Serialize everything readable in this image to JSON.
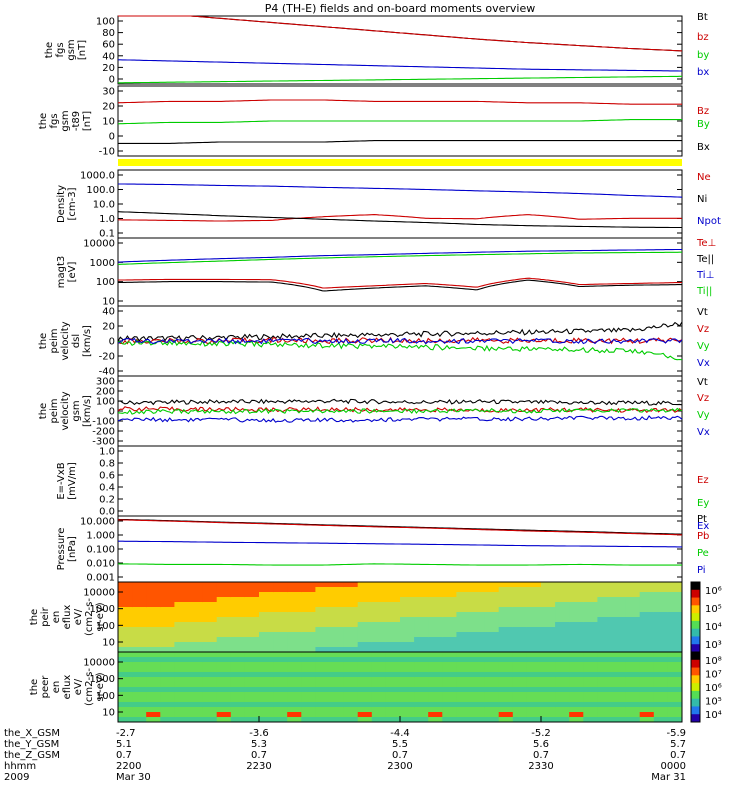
{
  "chart_data": {
    "type": "line",
    "title": "P4 (TH-E) fields and on-board moments overview",
    "x": {
      "hhmm": [
        "2200",
        "2230",
        "2300",
        "2330",
        "0000"
      ],
      "the_X_GSM": [
        "-2.7",
        "-3.6",
        "-4.4",
        "-5.2",
        "-5.9"
      ],
      "the_Y_GSM": [
        "5.1",
        "5.3",
        "5.5",
        "5.6",
        "5.7"
      ],
      "the_Z_GSM": [
        "0.7",
        "0.7",
        "0.7",
        "0.7",
        "0.7"
      ],
      "dates": [
        "Mar 30",
        "Mar 31"
      ],
      "row_labels": [
        "the_X_GSM",
        "the_Y_GSM",
        "the_Z_GSM",
        "hhmm",
        "2009"
      ]
    },
    "panels": [
      {
        "id": "fgs_gsm",
        "ylabel": [
          "the",
          "fgs",
          "gsm",
          "[nT]"
        ],
        "yticks": [
          "100",
          "80",
          "60",
          "40",
          "20",
          "0"
        ],
        "ylim": [
          -10,
          105
        ],
        "series": [
          {
            "name": "Bt",
            "color": "#000000",
            "values": [
              115,
              108,
              101,
              94,
              87,
              80,
              73,
              66,
              60,
              55,
              50,
              46
            ]
          },
          {
            "name": "bz",
            "color": "#cc0000",
            "values": [
              115,
              108,
              101,
              94,
              87,
              80,
              73,
              66,
              60,
              55,
              50,
              46
            ]
          },
          {
            "name": "by",
            "color": "#00cc00",
            "values": [
              -8,
              -7,
              -6,
              -5,
              -4,
              -3,
              -2,
              -1,
              0,
              1,
              2,
              3
            ]
          },
          {
            "name": "bx",
            "color": "#0000cc",
            "values": [
              31,
              29,
              27,
              25,
              23,
              21,
              19,
              17,
              15,
              14,
              13,
              12
            ]
          }
        ]
      },
      {
        "id": "fgs_gsm_t89",
        "ylabel": [
          "the",
          "fgs",
          "gsm",
          "-t89",
          "[nT]"
        ],
        "yticks": [
          "30",
          "20",
          "10",
          "0",
          "-10"
        ],
        "ylim": [
          -17,
          33
        ],
        "series": [
          {
            "name": "Bz",
            "color": "#cc0000",
            "values": [
              21,
              22,
              22,
              23,
              23,
              22,
              22,
              22,
              21,
              21,
              20,
              20
            ]
          },
          {
            "name": "By",
            "color": "#00cc00",
            "values": [
              6,
              7,
              7,
              8,
              8,
              8,
              8,
              8,
              8,
              8,
              9,
              9
            ]
          },
          {
            "name": "Bx",
            "color": "#000000",
            "values": [
              -8,
              -8,
              -7,
              -7,
              -7,
              -6,
              -6,
              -6,
              -6,
              -6,
              -6,
              -6
            ]
          }
        ]
      },
      {
        "id": "density",
        "ylabel": [
          "Density",
          "[cm-3]"
        ],
        "yticks": [
          "1000.0",
          "100.0",
          "10.0",
          "1.0",
          "0.1"
        ],
        "ylim": [
          0.08,
          2000
        ],
        "log": true,
        "series": [
          {
            "name": "Ne",
            "color": "#cc0000",
            "values": [
              1.2,
              1.1,
              1.0,
              1.1,
              1.9,
              2.6,
              1.5,
              1.4,
              2.6,
              1.3,
              1.5,
              1.5
            ]
          },
          {
            "name": "Ni",
            "color": "#000000",
            "values": [
              4,
              3,
              2.2,
              1.7,
              1.3,
              1.0,
              0.8,
              0.6,
              0.5,
              0.45,
              0.4,
              0.38
            ]
          },
          {
            "name": "Npot",
            "color": "#0000cc",
            "values": [
              250,
              230,
              200,
              180,
              150,
              130,
              110,
              90,
              75,
              60,
              45,
              35
            ]
          }
        ]
      },
      {
        "id": "temperature",
        "ylabel": [
          "magt3",
          "[eV]"
        ],
        "yticks": [
          "10000",
          "1000",
          "100",
          "10"
        ],
        "ylim": [
          8,
          12000
        ],
        "log": true,
        "series": [
          {
            "name": "Te⊥",
            "color": "#cc0000",
            "values": [
              130,
              140,
              140,
              135,
              55,
              70,
              90,
              60,
              160,
              80,
              90,
              100
            ]
          },
          {
            "name": "Te||",
            "color": "#000000",
            "values": [
              100,
              110,
              110,
              105,
              40,
              55,
              70,
              45,
              130,
              65,
              75,
              80
            ]
          },
          {
            "name": "Ti⊥",
            "color": "#0000cc",
            "values": [
              900,
              1100,
              1300,
              1500,
              1800,
              2000,
              2300,
              2600,
              2900,
              3100,
              3300,
              3500
            ]
          },
          {
            "name": "Ti||",
            "color": "#00cc00",
            "values": [
              700,
              850,
              1000,
              1200,
              1400,
              1600,
              1800,
              2000,
              2200,
              2400,
              2500,
              2600
            ]
          }
        ]
      },
      {
        "id": "peim_velocity_dsl",
        "ylabel": [
          "the",
          "peim",
          "velocity",
          "dsl",
          "[km/s]"
        ],
        "yticks": [
          "40",
          "20",
          "0",
          "-20",
          "-40"
        ],
        "ylim": [
          -40,
          40
        ],
        "series": [
          {
            "name": "Vt",
            "color": "#000000",
            "values": [
              3,
              3,
              4,
              5,
              6,
              7,
              8,
              9,
              10,
              11,
              12,
              20
            ]
          },
          {
            "name": "Vz",
            "color": "#cc0000",
            "values": [
              0,
              0,
              0,
              1,
              0,
              1,
              0,
              1,
              0,
              1,
              0,
              1
            ]
          },
          {
            "name": "Vy",
            "color": "#00cc00",
            "values": [
              -2,
              -2,
              -3,
              -4,
              -5,
              -6,
              -7,
              -8,
              -9,
              -10,
              -11,
              -20
            ]
          },
          {
            "name": "Vx",
            "color": "#0000cc",
            "values": [
              0,
              0,
              0,
              0,
              0,
              0,
              0,
              0,
              0,
              0,
              0,
              0
            ]
          }
        ]
      },
      {
        "id": "peim_velocity_gsm",
        "ylabel": [
          "the",
          "peim",
          "velocity",
          "gsm",
          "[km/s]"
        ],
        "yticks": [
          "300",
          "200",
          "100",
          "0",
          "-100",
          "-200",
          "-300"
        ],
        "ylim": [
          -300,
          300
        ],
        "series": [
          {
            "name": "Vt",
            "color": "#000000",
            "values": [
              70,
              75,
              80,
              80,
              85,
              80,
              75,
              80,
              75,
              70,
              70,
              65
            ]
          },
          {
            "name": "Vz",
            "color": "#cc0000",
            "values": [
              20,
              15,
              15,
              10,
              15,
              10,
              10,
              5,
              10,
              10,
              5,
              5
            ]
          },
          {
            "name": "Vy",
            "color": "#00cc00",
            "values": [
              -10,
              -5,
              -5,
              0,
              -5,
              0,
              0,
              5,
              0,
              5,
              5,
              5
            ]
          },
          {
            "name": "Vx",
            "color": "#0000cc",
            "values": [
              -70,
              -75,
              -75,
              -80,
              -80,
              -75,
              -70,
              -70,
              -65,
              -60,
              -60,
              -55
            ]
          }
        ]
      },
      {
        "id": "exb",
        "ylabel": [
          "E=-VxB",
          "[mV/m]"
        ],
        "yticks": [
          "1.0",
          "0.8",
          "0.6",
          "0.4",
          "0.2",
          "0.0"
        ],
        "ylim": [
          0,
          1
        ],
        "series": [
          {
            "name": "Ez",
            "color": "#cc0000",
            "values": []
          },
          {
            "name": "Ey",
            "color": "#00cc00",
            "values": []
          },
          {
            "name": "Ex",
            "color": "#0000cc",
            "values": []
          }
        ]
      },
      {
        "id": "pressure",
        "ylabel": [
          "Pressure",
          "[nPa]"
        ],
        "yticks": [
          "10.000",
          "1.000",
          "0.100",
          "0.010",
          "0.001"
        ],
        "ylim": [
          0.0008,
          15
        ],
        "log": true,
        "series": [
          {
            "name": "Pt",
            "color": "#000000",
            "values": [
              9.0,
              7.5,
              6.0,
              5.0,
              4.0,
              3.3,
              2.7,
              2.2,
              1.8,
              1.5,
              1.2,
              1.0
            ]
          },
          {
            "name": "Pb",
            "color": "#cc0000",
            "values": [
              8.5,
              7.0,
              5.6,
              4.6,
              3.7,
              3.0,
              2.5,
              2.0,
              1.6,
              1.35,
              1.1,
              0.9
            ]
          },
          {
            "name": "Pe",
            "color": "#00cc00",
            "values": [
              0.012,
              0.011,
              0.011,
              0.01,
              0.01,
              0.012,
              0.011,
              0.01,
              0.01,
              0.011,
              0.01,
              0.01
            ]
          },
          {
            "name": "Pi",
            "color": "#0000cc",
            "values": [
              0.35,
              0.33,
              0.3,
              0.28,
              0.26,
              0.24,
              0.22,
              0.2,
              0.18,
              0.17,
              0.16,
              0.15
            ]
          }
        ]
      }
    ],
    "spectrograms": [
      {
        "id": "peir_en_eflux",
        "ylabel": [
          "the",
          "peir",
          "en",
          "eflux",
          "eV/",
          "(cm2-s-",
          "sr-eV)"
        ],
        "yticks": [
          "10000",
          "1000",
          "100",
          "10"
        ],
        "colorbar": {
          "ticks": [
            "10⁶",
            "10⁵",
            "10⁴",
            "10³"
          ],
          "zlog_range": [
            2.5,
            6.5
          ]
        }
      },
      {
        "id": "peer_en_eflux",
        "ylabel": [
          "the",
          "peer",
          "en",
          "eflux",
          "eV/",
          "(cm2-s-",
          "sr-eV)"
        ],
        "yticks": [
          "10000",
          "1000",
          "100",
          "10"
        ],
        "colorbar": {
          "ticks": [
            "10⁸",
            "10⁷",
            "10⁶",
            "10⁵",
            "10⁴"
          ],
          "zlog_range": [
            3.5,
            8.5
          ]
        }
      }
    ],
    "colors": {
      "black": "#000000",
      "red": "#cc0000",
      "green": "#00cc00",
      "blue": "#0000cc",
      "bar": "#ffff00"
    }
  }
}
